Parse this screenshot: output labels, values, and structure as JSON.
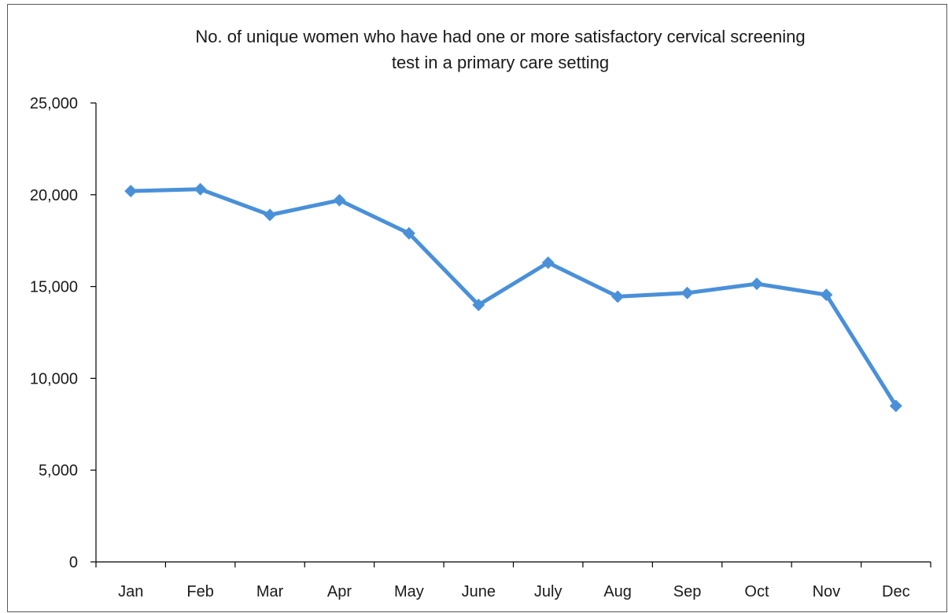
{
  "chart_data": {
    "type": "line",
    "title_lines": [
      "No. of unique women who have had one or more satisfactory cervical screening",
      "test in a primary care setting"
    ],
    "categories": [
      "Jan",
      "Feb",
      "Mar",
      "Apr",
      "May",
      "June",
      "July",
      "Aug",
      "Sep",
      "Oct",
      "Nov",
      "Dec"
    ],
    "series": [
      {
        "values": [
          20200,
          20300,
          18900,
          19700,
          17900,
          14000,
          16300,
          14450,
          14650,
          15150,
          14550,
          8500
        ],
        "color": "#4A90D9",
        "marker": "diamond"
      }
    ],
    "yticks": [
      "0",
      "5,000",
      "10,000",
      "15,000",
      "20,000",
      "25,000"
    ],
    "ylim": [
      0,
      25000
    ],
    "grid": false,
    "legend": "none"
  }
}
